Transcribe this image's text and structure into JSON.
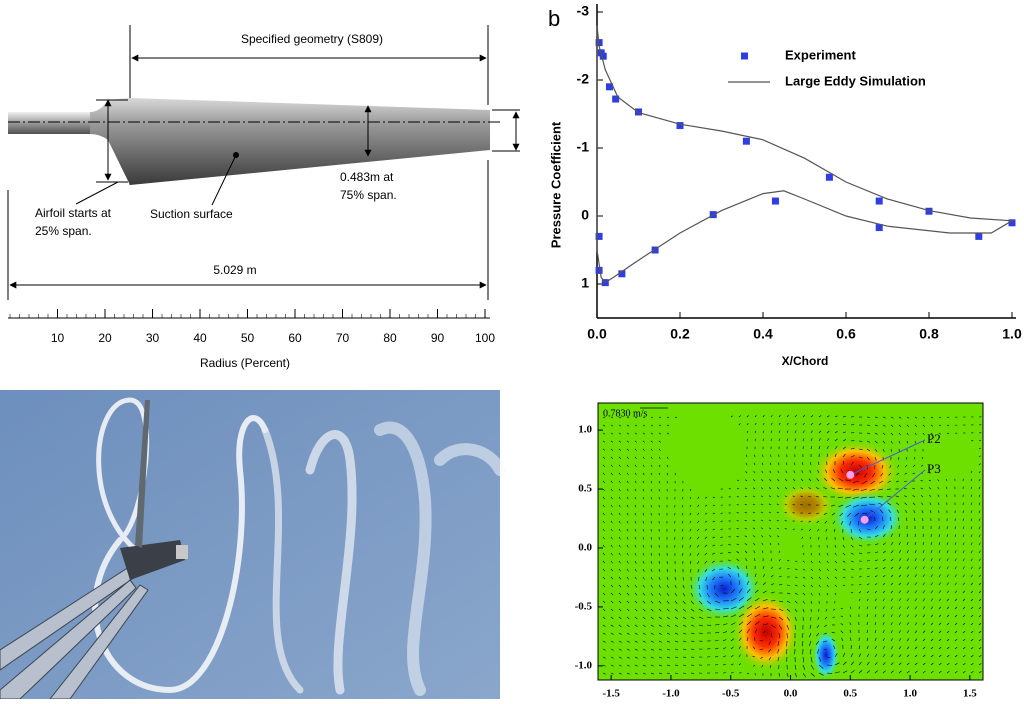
{
  "diagram": {
    "geometry_label": "Specified geometry (S809)",
    "airfoil_note": [
      "Airfoil starts at",
      "25% span."
    ],
    "suction_label": "Suction surface",
    "chord_note": [
      "0.483m at",
      "75% span."
    ],
    "length_label": "5.029 m",
    "ruler": {
      "xlim": [
        0,
        100
      ],
      "ticks": [
        10,
        20,
        30,
        40,
        50,
        60,
        70,
        80,
        90,
        100
      ],
      "label": "Radius  (Percent)"
    }
  },
  "chart_data": [
    {
      "type": "line",
      "panel_label": "b",
      "xlabel": "X/Chord",
      "ylabel": "Pressure Coefficient",
      "xlim": [
        0,
        1
      ],
      "ylim": [
        -3,
        1.5
      ],
      "y_inverted": true,
      "xticks": [
        {
          "value": 0,
          "label": "0.0"
        },
        0.2,
        0.4,
        0.6,
        0.8,
        {
          "value": 1,
          "label": "1.0"
        }
      ],
      "yticks": [
        -3,
        -2,
        -1,
        0,
        1
      ],
      "legend": "top-right",
      "series": [
        {
          "name": "Experiment",
          "color": "#2f3ee0",
          "style": "markers",
          "x": [
            0.005,
            0.01,
            0.015,
            0.03,
            0.045,
            0.1,
            0.2,
            0.36,
            0.56,
            0.68,
            0.8,
            1.0,
            0.92,
            0.68,
            0.43,
            0.28,
            0.14,
            0.06,
            0.02,
            0.005,
            0.005
          ],
          "values": [
            -2.55,
            -2.4,
            -2.35,
            -1.9,
            -1.72,
            -1.53,
            -1.33,
            -1.1,
            -0.57,
            -0.22,
            -0.07,
            0.1,
            0.3,
            0.17,
            -0.22,
            -0.02,
            0.5,
            0.85,
            0.98,
            0.8,
            0.3
          ]
        },
        {
          "name": "Large Eddy Simulation",
          "color": "#555555",
          "style": "line",
          "x": [
            0,
            0.005,
            0.02,
            0.05,
            0.1,
            0.2,
            0.3,
            0.4,
            0.5,
            0.6,
            0.7,
            0.8,
            0.9,
            1.0,
            0.95,
            0.85,
            0.7,
            0.6,
            0.5,
            0.45,
            0.4,
            0.3,
            0.2,
            0.1,
            0.04,
            0.02,
            0.01,
            0,
            0
          ],
          "values": [
            -2.8,
            -2.5,
            -2.15,
            -1.75,
            -1.52,
            -1.35,
            -1.25,
            -1.12,
            -0.85,
            -0.5,
            -0.25,
            -0.08,
            0.03,
            0.07,
            0.25,
            0.25,
            0.15,
            0,
            -0.25,
            -0.37,
            -0.33,
            -0.08,
            0.25,
            0.65,
            0.9,
            0.98,
            0.9,
            0.5,
            -2.8
          ]
        }
      ]
    },
    {
      "type": "contour",
      "xlim": [
        -1.61,
        1.61
      ],
      "ylim": [
        -1.12,
        1.23
      ],
      "xticks": [
        -1.5,
        {
          "value": -1,
          "label": "-1.0"
        },
        -0.5,
        {
          "value": 0,
          "label": "0.0"
        },
        0.5,
        {
          "value": 1,
          "label": "1.0"
        },
        1.5
      ],
      "yticks": [
        {
          "value": 1,
          "label": "1.0"
        },
        0.5,
        {
          "value": 0,
          "label": "0.0"
        },
        -0.5,
        {
          "value": -1,
          "label": "-1.0"
        }
      ],
      "reference_vector": "0.7830 m/s",
      "points": [
        {
          "label": "P2",
          "x": 0.5,
          "y": 0.62
        },
        {
          "label": "P3",
          "x": 0.62,
          "y": 0.24
        }
      ]
    }
  ]
}
